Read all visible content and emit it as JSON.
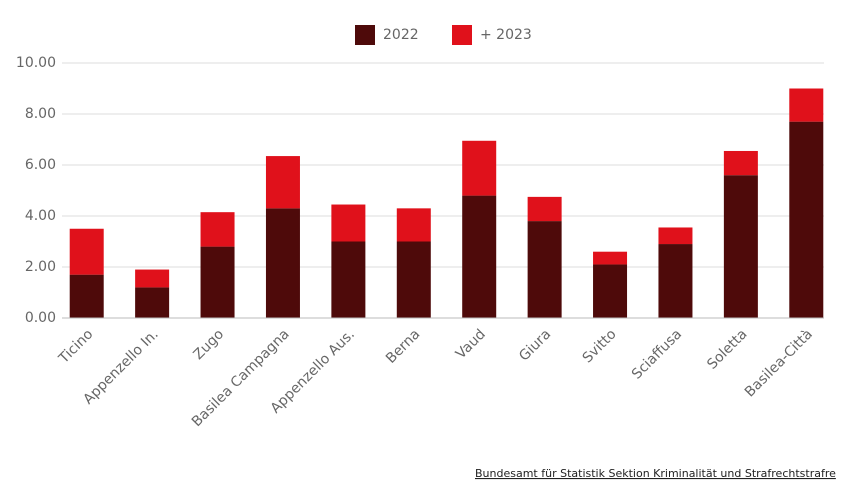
{
  "chart_data": {
    "type": "stacked_bar",
    "categories": [
      "Ticino",
      "Appenzello In.",
      "Zugo",
      "Basilea Campagna",
      "Appenzello Aus.",
      "Berna",
      "Vaud",
      "Giura",
      "Svitto",
      "Sciaffusa",
      "Soletta",
      "Basilea-Città"
    ],
    "series": [
      {
        "name": "2022",
        "color": "#4e0a0a",
        "values": [
          1.7,
          1.2,
          2.8,
          4.3,
          3.0,
          3.0,
          4.8,
          3.8,
          2.1,
          2.9,
          5.6,
          7.7
        ]
      },
      {
        "name": "+ 2023",
        "color": "#e0111b",
        "values": [
          1.8,
          0.7,
          1.35,
          2.05,
          1.45,
          1.3,
          2.15,
          0.95,
          0.5,
          0.65,
          0.95,
          1.3
        ]
      }
    ],
    "ylim": [
      0,
      10
    ],
    "yticks": [
      {
        "value": 0,
        "label": "0.00"
      },
      {
        "value": 2,
        "label": "2.00"
      },
      {
        "value": 4,
        "label": "4.00"
      },
      {
        "value": 6,
        "label": "6.00"
      },
      {
        "value": 8,
        "label": "8.00"
      },
      {
        "value": 10,
        "label": "10.00"
      }
    ],
    "grid": true,
    "source": "Bundesamt für Statistik Sektion Kriminalität und Strafrechtstrafre"
  }
}
